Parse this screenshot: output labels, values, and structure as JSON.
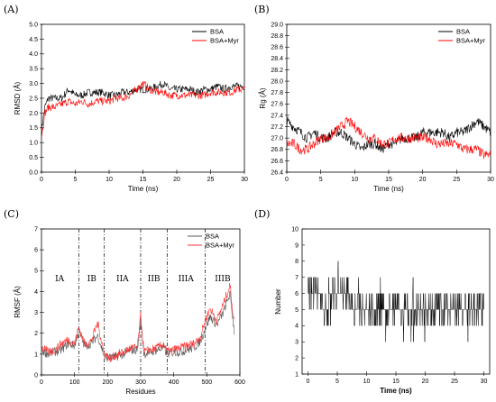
{
  "chart_data": [
    {
      "panel": "(A)",
      "type": "line",
      "xlabel": "Time (ns)",
      "ylabel": "RMSD (Å)",
      "xlim": [
        0,
        30
      ],
      "ylim": [
        0.0,
        5.0
      ],
      "xticks": [
        0,
        5,
        10,
        15,
        20,
        25,
        30
      ],
      "yticks": [
        "0.0",
        "0.5",
        "1.0",
        "1.5",
        "2.0",
        "2.5",
        "3.0",
        "3.5",
        "4.0",
        "4.5",
        "5.0"
      ],
      "legend_position": "top-right",
      "series": [
        {
          "name": "BSA",
          "color": "#000000",
          "x": [
            0,
            0.5,
            1,
            2,
            3,
            4,
            5,
            6,
            7,
            8,
            9,
            10,
            11,
            12,
            13,
            14,
            15,
            16,
            17,
            18,
            19,
            20,
            21,
            22,
            23,
            24,
            25,
            26,
            27,
            28,
            29,
            30
          ],
          "y": [
            1.4,
            2.2,
            2.5,
            2.5,
            2.5,
            2.8,
            2.6,
            2.6,
            2.7,
            2.7,
            2.7,
            2.6,
            2.6,
            2.7,
            2.7,
            2.8,
            2.8,
            2.8,
            2.9,
            3.0,
            2.8,
            2.8,
            2.8,
            2.8,
            2.7,
            2.8,
            2.8,
            2.9,
            2.8,
            2.9,
            2.9,
            2.9
          ]
        },
        {
          "name": "BSA+Myr",
          "color": "#ff0000",
          "x": [
            0,
            0.5,
            1,
            2,
            3,
            4,
            5,
            6,
            7,
            8,
            9,
            10,
            11,
            12,
            13,
            14,
            15,
            16,
            17,
            18,
            19,
            20,
            21,
            22,
            23,
            24,
            25,
            26,
            27,
            28,
            29,
            30
          ],
          "y": [
            1.2,
            2.0,
            2.2,
            2.2,
            2.3,
            2.4,
            2.3,
            2.4,
            2.3,
            2.4,
            2.4,
            2.4,
            2.5,
            2.5,
            2.6,
            2.8,
            3.0,
            2.8,
            2.7,
            2.7,
            2.6,
            2.6,
            2.6,
            2.6,
            2.6,
            2.6,
            2.7,
            2.7,
            2.7,
            2.7,
            2.8,
            2.8
          ]
        }
      ]
    },
    {
      "panel": "(B)",
      "type": "line",
      "xlabel": "Time (ns)",
      "ylabel": "Rg (Å)",
      "xlim": [
        0,
        30
      ],
      "ylim": [
        26.4,
        29.0
      ],
      "xticks": [
        0,
        5,
        10,
        15,
        20,
        25,
        30
      ],
      "yticks": [
        "26.4",
        "26.6",
        "26.8",
        "27.0",
        "27.2",
        "27.4",
        "27.6",
        "27.8",
        "28.0",
        "28.2",
        "28.4",
        "28.6",
        "28.8",
        "29.0"
      ],
      "legend_position": "top-right",
      "series": [
        {
          "name": "BSA",
          "color": "#000000",
          "x": [
            0,
            1,
            2,
            3,
            4,
            5,
            6,
            7,
            8,
            9,
            10,
            11,
            12,
            13,
            14,
            15,
            16,
            17,
            18,
            19,
            20,
            21,
            22,
            23,
            24,
            25,
            26,
            27,
            28,
            29,
            30
          ],
          "y": [
            27.3,
            27.2,
            27.1,
            27.0,
            27.1,
            27.0,
            27.0,
            27.1,
            27.1,
            27.0,
            26.9,
            26.8,
            26.9,
            26.9,
            26.8,
            26.9,
            26.9,
            27.0,
            27.0,
            27.0,
            27.1,
            27.1,
            27.1,
            27.1,
            27.0,
            27.1,
            27.1,
            27.2,
            27.3,
            27.2,
            27.1
          ]
        },
        {
          "name": "BSA+Myr",
          "color": "#ff0000",
          "x": [
            0,
            1,
            2,
            3,
            4,
            5,
            6,
            7,
            8,
            9,
            10,
            11,
            12,
            13,
            14,
            15,
            16,
            17,
            18,
            19,
            20,
            21,
            22,
            23,
            24,
            25,
            26,
            27,
            28,
            29,
            30
          ],
          "y": [
            26.9,
            26.9,
            26.8,
            26.8,
            26.9,
            27.0,
            27.0,
            27.1,
            27.2,
            27.3,
            27.2,
            27.1,
            27.0,
            27.0,
            26.9,
            26.9,
            27.0,
            27.0,
            27.0,
            27.0,
            27.0,
            27.0,
            26.9,
            26.9,
            26.9,
            26.9,
            26.8,
            26.8,
            26.8,
            26.7,
            26.7
          ]
        }
      ]
    },
    {
      "panel": "(C)",
      "type": "line",
      "xlabel": "Residues",
      "ylabel": "RMSF (Å)",
      "xlim": [
        0,
        600
      ],
      "ylim": [
        0,
        7
      ],
      "xticks": [
        0,
        100,
        200,
        300,
        400,
        500,
        600
      ],
      "yticks": [
        "0",
        "1",
        "2",
        "3",
        "4",
        "5",
        "6",
        "7"
      ],
      "legend_position": "top-right",
      "domain_boundaries": [
        113,
        190,
        300,
        380,
        495
      ],
      "domain_labels": [
        {
          "text": "IA",
          "x": 55
        },
        {
          "text": "IB",
          "x": 152
        },
        {
          "text": "IIA",
          "x": 245
        },
        {
          "text": "IIB",
          "x": 340
        },
        {
          "text": "IIIA",
          "x": 437
        },
        {
          "text": "IIIB",
          "x": 548
        }
      ],
      "series": [
        {
          "name": "BSA",
          "color": "#555555",
          "x": [
            0,
            20,
            40,
            60,
            80,
            100,
            113,
            130,
            150,
            170,
            190,
            210,
            230,
            250,
            270,
            290,
            300,
            310,
            330,
            350,
            370,
            380,
            400,
            420,
            440,
            460,
            480,
            495,
            510,
            530,
            550,
            570,
            583
          ],
          "y": [
            1.2,
            1.0,
            1.1,
            1.2,
            1.5,
            1.4,
            2.1,
            1.4,
            1.5,
            1.9,
            0.9,
            0.8,
            0.9,
            1.0,
            1.2,
            1.2,
            2.6,
            1.0,
            1.1,
            1.2,
            1.3,
            1.0,
            1.1,
            1.1,
            1.2,
            1.3,
            1.6,
            2.2,
            2.8,
            2.4,
            3.0,
            3.9,
            2.1
          ]
        },
        {
          "name": "BSA+Myr",
          "color": "#ff3333",
          "x": [
            0,
            20,
            40,
            60,
            80,
            100,
            113,
            130,
            150,
            170,
            190,
            210,
            230,
            250,
            270,
            290,
            300,
            310,
            330,
            350,
            370,
            380,
            400,
            420,
            440,
            460,
            480,
            495,
            510,
            530,
            550,
            570,
            583
          ],
          "y": [
            1.3,
            1.1,
            1.2,
            1.5,
            1.7,
            1.5,
            2.3,
            1.5,
            1.6,
            2.5,
            1.0,
            0.8,
            1.0,
            1.1,
            1.3,
            1.3,
            2.8,
            1.1,
            1.2,
            1.3,
            1.5,
            1.1,
            1.2,
            1.3,
            1.4,
            1.5,
            1.8,
            2.6,
            3.2,
            2.6,
            3.4,
            4.3,
            2.5
          ]
        }
      ]
    },
    {
      "panel": "(D)",
      "type": "line",
      "xlabel": "Time (ns)",
      "ylabel": "Number",
      "xlim": [
        -1,
        31
      ],
      "ylim": [
        1,
        10
      ],
      "xticks": [
        0,
        5,
        10,
        15,
        20,
        25,
        30
      ],
      "yticks": [
        "1",
        "2",
        "3",
        "4",
        "5",
        "6",
        "7",
        "8",
        "9",
        "10"
      ],
      "series": [
        {
          "name": "",
          "color": "#000000",
          "x": [
            0,
            1,
            2,
            3,
            4,
            5,
            6,
            7,
            8,
            9,
            10,
            11,
            12,
            13,
            14,
            15,
            16,
            17,
            18,
            19,
            20,
            21,
            22,
            23,
            24,
            25,
            26,
            27,
            28,
            29,
            30
          ],
          "y": [
            6,
            6,
            6,
            5,
            6,
            6,
            6,
            6,
            5,
            5,
            5,
            5,
            5,
            5,
            5,
            5,
            5,
            5,
            5,
            5,
            5,
            5,
            5,
            5,
            5,
            5,
            5,
            5,
            5,
            5,
            5
          ],
          "band_low": [
            4,
            4,
            4,
            4,
            4,
            3,
            4,
            4,
            3,
            3,
            3,
            4,
            3,
            3,
            3,
            3,
            3,
            3,
            3,
            3,
            3,
            3,
            3,
            3,
            3,
            3,
            3,
            3,
            3,
            3,
            3
          ],
          "band_high": [
            8,
            8,
            8,
            8,
            8,
            9,
            8,
            8,
            8,
            7,
            7,
            7,
            7,
            7,
            7,
            7,
            7,
            7,
            7,
            7,
            7,
            7,
            7,
            7,
            7,
            7,
            7,
            7,
            7,
            7,
            7
          ]
        }
      ]
    }
  ]
}
